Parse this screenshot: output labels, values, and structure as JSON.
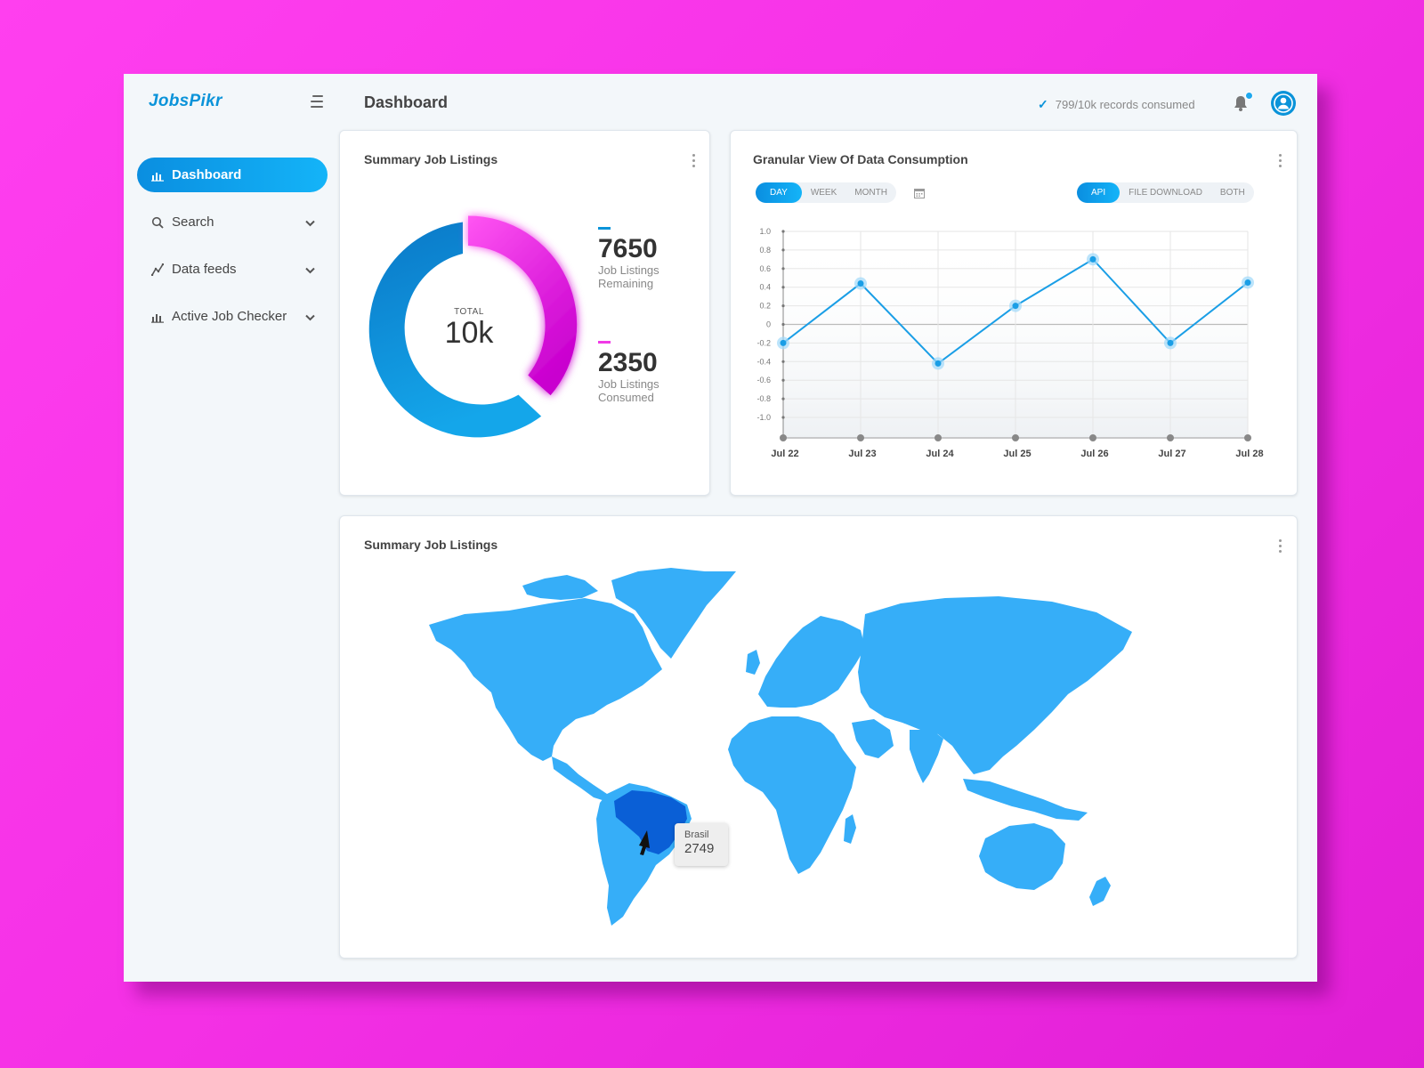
{
  "app": {
    "logo": "JobsPikr",
    "page_title": "Dashboard",
    "records_status": "799/10k records consumed"
  },
  "sidebar": {
    "items": [
      {
        "label": "Dashboard",
        "icon": "bar-chart-icon",
        "active": true
      },
      {
        "label": "Search",
        "icon": "search-icon",
        "expandable": true
      },
      {
        "label": "Data feeds",
        "icon": "trend-line-icon",
        "expandable": true
      },
      {
        "label": "Active Job Checker",
        "icon": "bar-chart-icon",
        "expandable": true
      }
    ]
  },
  "summary_card": {
    "title": "Summary Job Listings",
    "total_label": "TOTAL",
    "total_value": "10k",
    "stats": [
      {
        "value": "7650",
        "label_line1": "Job Listings",
        "label_line2": "Remaining",
        "color": "#0a93d9"
      },
      {
        "value": "2350",
        "label_line1": "Job Listings",
        "label_line2": "Consumed",
        "color": "#f03ae6"
      }
    ]
  },
  "consumption_card": {
    "title": "Granular View Of Data Consumption",
    "period_options": [
      "DAY",
      "WEEK",
      "MONTH"
    ],
    "period_selected": "DAY",
    "source_options": [
      "API",
      "FILE DOWNLOAD",
      "BOTH"
    ],
    "source_selected": "API"
  },
  "map_card": {
    "title": "Summary Job Listings",
    "tooltip": {
      "country": "Brasil",
      "value": "2749"
    },
    "highlight_color": "#0a5fd6",
    "base_color": "#36aef8"
  },
  "colors": {
    "accent": "#0a93d9",
    "pink": "#f03ae6",
    "line": "#1a9ee6"
  },
  "chart_data": {
    "type": "line",
    "x": [
      "Jul 22",
      "Jul 23",
      "Jul 24",
      "Jul 25",
      "Jul 26",
      "Jul 27",
      "Jul 28"
    ],
    "series": [
      {
        "values": [
          -0.2,
          0.44,
          -0.42,
          0.2,
          0.7,
          -0.2,
          0.45
        ]
      }
    ],
    "y_ticks": [
      "1.0",
      "0.8",
      "0.6",
      "0.4",
      "0.2",
      "0",
      "-0.2",
      "-0.4",
      "-0.6",
      "-0.8",
      "-1.0"
    ],
    "ylim": [
      -1.0,
      1.0
    ],
    "grid": true
  }
}
